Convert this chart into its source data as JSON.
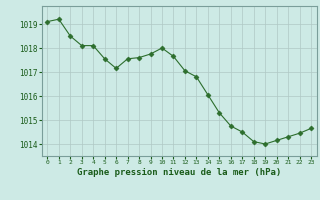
{
  "x": [
    0,
    1,
    2,
    3,
    4,
    5,
    6,
    7,
    8,
    9,
    10,
    11,
    12,
    13,
    14,
    15,
    16,
    17,
    18,
    19,
    20,
    21,
    22,
    23
  ],
  "y": [
    1019.1,
    1019.2,
    1018.5,
    1018.1,
    1018.1,
    1017.55,
    1017.15,
    1017.55,
    1017.6,
    1017.75,
    1018.0,
    1017.65,
    1017.05,
    1016.8,
    1016.05,
    1015.3,
    1014.75,
    1014.5,
    1014.1,
    1014.0,
    1014.15,
    1014.3,
    1014.45,
    1014.65
  ],
  "line_color": "#2d6e2d",
  "marker": "D",
  "marker_size": 2.5,
  "bg_color": "#cdeae5",
  "grid_color": "#b0c8c4",
  "xlabel": "Graphe pression niveau de la mer (hPa)",
  "xlabel_color": "#1a5c1a",
  "tick_color": "#1a5c1a",
  "ylim": [
    1013.5,
    1019.75
  ],
  "yticks": [
    1014,
    1015,
    1016,
    1017,
    1018,
    1019
  ],
  "xlim": [
    -0.5,
    23.5
  ]
}
